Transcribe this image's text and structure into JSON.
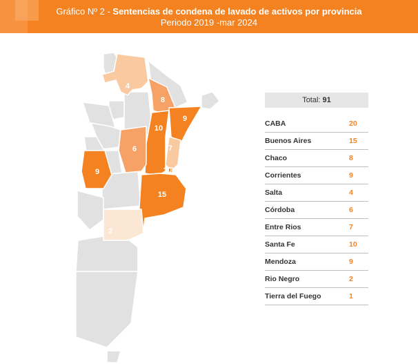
{
  "header": {
    "prefix": "Gráfico Nº 2",
    "separator": " - ",
    "title": "Sentencias de condena de lavado de activos por provincia",
    "period": "Periodo 2019 -mar 2024"
  },
  "summary": {
    "total_label": "Total:",
    "total_value": "91"
  },
  "chart_data": {
    "type": "table",
    "title": "Sentencias de condena de lavado de activos por provincia",
    "subtitle": "Periodo 2019 -mar 2024",
    "total": 91,
    "rows": [
      {
        "provincia": "CABA",
        "valor": 20
      },
      {
        "provincia": "Buenos Aires",
        "valor": 15
      },
      {
        "provincia": "Chaco",
        "valor": 8
      },
      {
        "provincia": "Corrientes",
        "valor": 9
      },
      {
        "provincia": "Salta",
        "valor": 4
      },
      {
        "provincia": "Córdoba",
        "valor": 6
      },
      {
        "provincia": "Entre Rios",
        "valor": 7
      },
      {
        "provincia": "Santa Fe",
        "valor": 10
      },
      {
        "provincia": "Mendoza",
        "valor": 9
      },
      {
        "provincia": "Rio Negro",
        "valor": 2
      },
      {
        "provincia": "Tierra del Fuego",
        "valor": 1
      }
    ],
    "map_labels": [
      "4",
      "8",
      "10",
      "9",
      "6",
      "7",
      "20",
      "9",
      "15",
      "2"
    ],
    "colors": {
      "accent": "#f58220",
      "no_data": "#e1e1e1",
      "border": "#ffffff",
      "scale_high": "#f58220",
      "scale_mid": "#f6a266",
      "scale_low": "#f9c9a0",
      "scale_lowest": "#fce7d5"
    }
  }
}
